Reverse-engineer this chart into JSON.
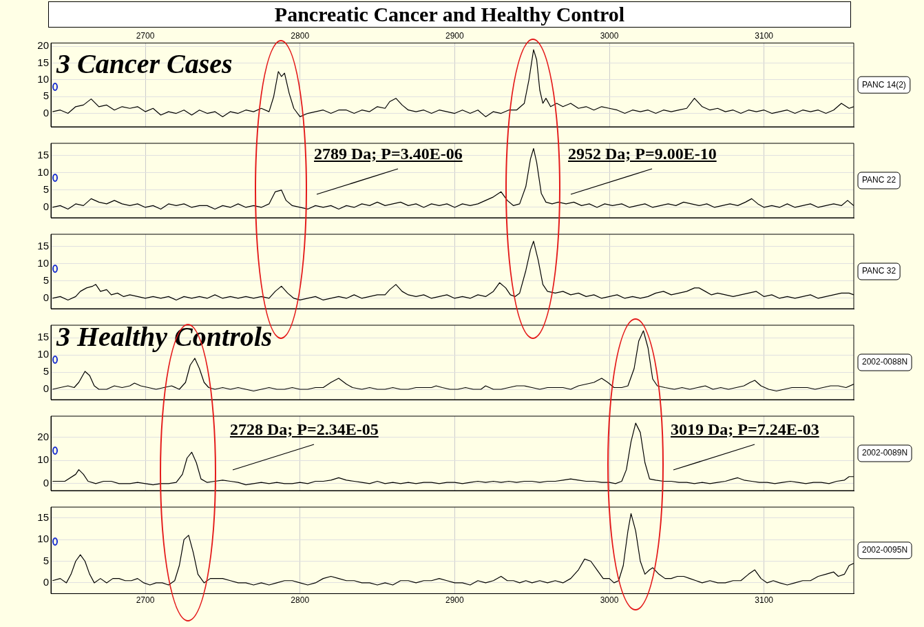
{
  "chart_data": [
    {
      "type": "line",
      "title": "Pancreatic Cancer and Healthy Control",
      "xlim": [
        2639,
        3158
      ],
      "xticks": [
        2700,
        2800,
        2900,
        3000,
        3100
      ],
      "x2lim": [
        2639,
        3158
      ],
      "x2ticks": [
        2700,
        2800,
        2900,
        3000,
        3100
      ],
      "ylim": [
        -4,
        21
      ],
      "yticks": [
        0,
        5,
        10,
        15,
        20
      ],
      "tick_labels": "y",
      "grid": true,
      "annotations": [
        "3 Cancer Cases"
      ],
      "x": [
        2640,
        2645,
        2650,
        2655,
        2660,
        2665,
        2670,
        2675,
        2680,
        2685,
        2690,
        2695,
        2700,
        2705,
        2710,
        2715,
        2720,
        2725,
        2730,
        2735,
        2740,
        2745,
        2750,
        2755,
        2760,
        2765,
        2770,
        2775,
        2780,
        2783,
        2786,
        2788,
        2790,
        2793,
        2796,
        2800,
        2805,
        2810,
        2815,
        2820,
        2825,
        2830,
        2835,
        2840,
        2845,
        2850,
        2855,
        2858,
        2862,
        2866,
        2870,
        2875,
        2880,
        2885,
        2890,
        2895,
        2900,
        2905,
        2910,
        2915,
        2920,
        2925,
        2930,
        2935,
        2940,
        2945,
        2948,
        2951,
        2953,
        2955,
        2957,
        2959,
        2962,
        2966,
        2970,
        2975,
        2980,
        2985,
        2990,
        2995,
        3000,
        3005,
        3010,
        3015,
        3020,
        3025,
        3030,
        3035,
        3040,
        3045,
        3050,
        3055,
        3060,
        3065,
        3070,
        3075,
        3080,
        3085,
        3090,
        3095,
        3100,
        3105,
        3110,
        3115,
        3120,
        3125,
        3130,
        3135,
        3140,
        3145,
        3150,
        3155,
        3158
      ],
      "series": [
        {
          "name": "PANC 14(2)",
          "color": "#000000",
          "values": [
            0.5,
            1,
            0,
            2,
            2.5,
            4.3,
            2,
            2.5,
            1,
            2,
            1.5,
            2,
            0.5,
            1.5,
            -0.5,
            0.5,
            0,
            1,
            -0.5,
            1,
            0,
            0.5,
            -1,
            0.5,
            0,
            1,
            0.5,
            1.5,
            0.5,
            5,
            12.5,
            11,
            12,
            6,
            1.5,
            -1,
            0,
            0.5,
            1,
            0,
            1,
            1,
            0,
            1,
            0.5,
            2,
            1.5,
            3.5,
            4.5,
            2.5,
            1,
            0.5,
            1,
            0,
            1,
            0.5,
            0,
            1,
            0,
            1,
            -1,
            0.5,
            0,
            1,
            1,
            3,
            10,
            19,
            16,
            7,
            3,
            4.5,
            2,
            3,
            2,
            3,
            1.5,
            2,
            1,
            2,
            1.5,
            1,
            0,
            1,
            0.5,
            1,
            0,
            1,
            0.5,
            1,
            1.5,
            4.5,
            2,
            1,
            1.5,
            0.5,
            1,
            0,
            1,
            0.5,
            1,
            0,
            0.5,
            1,
            0,
            1,
            0.5,
            1,
            0,
            1,
            3,
            1.5,
            2
          ]
        }
      ]
    },
    {
      "type": "line",
      "xlim": [
        2639,
        3158
      ],
      "xticks": [
        2700,
        2800,
        2900,
        3000,
        3100
      ],
      "ylim": [
        -3,
        18.5
      ],
      "yticks": [
        0,
        5,
        10,
        15
      ],
      "tick_labels": "y",
      "grid": true,
      "annotations": [
        "2789 Da; P=3.40E-06",
        "2952 Da; P=9.00E-10"
      ],
      "x": [
        2640,
        2645,
        2650,
        2655,
        2660,
        2665,
        2670,
        2675,
        2680,
        2685,
        2690,
        2695,
        2700,
        2705,
        2710,
        2715,
        2720,
        2725,
        2730,
        2735,
        2740,
        2745,
        2750,
        2755,
        2760,
        2765,
        2770,
        2775,
        2780,
        2784,
        2788,
        2791,
        2795,
        2800,
        2805,
        2810,
        2815,
        2820,
        2825,
        2830,
        2835,
        2840,
        2845,
        2850,
        2855,
        2860,
        2865,
        2870,
        2875,
        2880,
        2885,
        2890,
        2895,
        2900,
        2905,
        2910,
        2915,
        2920,
        2925,
        2930,
        2934,
        2938,
        2942,
        2946,
        2949,
        2951,
        2953,
        2956,
        2959,
        2963,
        2967,
        2972,
        2977,
        2982,
        2987,
        2992,
        2997,
        3002,
        3008,
        3013,
        3018,
        3023,
        3028,
        3033,
        3038,
        3043,
        3048,
        3053,
        3058,
        3063,
        3068,
        3073,
        3078,
        3083,
        3088,
        3092,
        3096,
        3100,
        3105,
        3110,
        3115,
        3120,
        3125,
        3130,
        3135,
        3140,
        3145,
        3150,
        3154,
        3158
      ],
      "series": [
        {
          "name": "PANC 22",
          "color": "#000000",
          "values": [
            0,
            0.5,
            -0.5,
            1,
            0.5,
            2.5,
            1.5,
            1,
            2,
            1,
            0.5,
            1,
            0,
            0.5,
            -0.5,
            1,
            0.5,
            1,
            0,
            0.5,
            0.5,
            -0.5,
            0.5,
            0,
            1,
            0,
            0.5,
            0,
            1,
            4.5,
            5,
            2,
            0.5,
            0,
            -0.5,
            0.5,
            0,
            0.5,
            -0.5,
            0.5,
            0,
            1,
            0.5,
            1.5,
            0.5,
            1,
            1.5,
            0.5,
            1,
            0,
            1,
            0.5,
            1,
            0,
            1,
            0.5,
            1,
            2,
            3,
            4.5,
            2,
            0.5,
            1,
            6,
            14,
            17,
            13,
            4,
            1.5,
            1,
            1.5,
            1,
            1.5,
            0.5,
            1,
            0,
            1,
            0.5,
            1,
            0,
            0.5,
            1,
            0,
            0.5,
            1,
            0.5,
            1.5,
            1,
            0.5,
            1,
            0,
            0.5,
            1,
            0.5,
            1.5,
            2.5,
            1,
            0,
            0.5,
            0,
            1,
            0,
            0.5,
            1,
            0,
            0.5,
            1,
            0.5,
            2,
            0.5
          ]
        }
      ]
    },
    {
      "type": "line",
      "xlim": [
        2639,
        3158
      ],
      "xticks": [
        2700,
        2800,
        2900,
        3000,
        3100
      ],
      "ylim": [
        -3,
        18.5
      ],
      "yticks": [
        0,
        5,
        10,
        15
      ],
      "tick_labels": "y",
      "grid": true,
      "x": [
        2640,
        2645,
        2650,
        2655,
        2658,
        2662,
        2666,
        2668,
        2671,
        2675,
        2678,
        2682,
        2686,
        2690,
        2695,
        2700,
        2705,
        2710,
        2715,
        2720,
        2725,
        2730,
        2735,
        2740,
        2745,
        2750,
        2755,
        2760,
        2765,
        2770,
        2775,
        2780,
        2784,
        2788,
        2792,
        2796,
        2800,
        2805,
        2810,
        2815,
        2820,
        2825,
        2830,
        2835,
        2840,
        2845,
        2850,
        2855,
        2858,
        2862,
        2866,
        2870,
        2875,
        2880,
        2885,
        2890,
        2895,
        2900,
        2905,
        2910,
        2915,
        2920,
        2925,
        2929,
        2933,
        2936,
        2939,
        2942,
        2946,
        2949,
        2951,
        2954,
        2957,
        2960,
        2965,
        2970,
        2975,
        2980,
        2985,
        2990,
        2995,
        3000,
        3005,
        3010,
        3015,
        3020,
        3025,
        3030,
        3035,
        3040,
        3045,
        3050,
        3055,
        3058,
        3062,
        3066,
        3070,
        3075,
        3080,
        3085,
        3090,
        3095,
        3100,
        3105,
        3110,
        3115,
        3120,
        3125,
        3130,
        3135,
        3140,
        3145,
        3150,
        3155,
        3158
      ],
      "series": [
        {
          "name": "PANC 32",
          "color": "#000000",
          "values": [
            0,
            0.5,
            -0.5,
            0.5,
            2,
            3,
            3.5,
            4,
            2,
            2.5,
            1,
            1.5,
            0.5,
            1,
            0.5,
            0,
            0.5,
            0,
            0.5,
            -0.5,
            0.5,
            0,
            0.5,
            0,
            1,
            0,
            0.5,
            0,
            0.5,
            0,
            0.5,
            0,
            2,
            3.5,
            1.5,
            0,
            -0.5,
            0,
            0.5,
            -0.5,
            0,
            0.5,
            0,
            1,
            0,
            0.5,
            1,
            1,
            2.5,
            4,
            2,
            1,
            0.5,
            1,
            0,
            0.5,
            1,
            0,
            0.5,
            0,
            1,
            0.5,
            2,
            4.5,
            3,
            1,
            0.5,
            1.5,
            8,
            14,
            16.5,
            11,
            4,
            2,
            1.5,
            2,
            1,
            1.5,
            0.5,
            1,
            0,
            0.5,
            1,
            0,
            0.5,
            0,
            0.5,
            1.5,
            2,
            1,
            1.5,
            2,
            3,
            3,
            2,
            1,
            1.5,
            1,
            0.5,
            1,
            1.5,
            2,
            0.5,
            1,
            0,
            0.5,
            0,
            0.5,
            1,
            0,
            0.5,
            1,
            1.5,
            1.5,
            1
          ]
        }
      ]
    },
    {
      "type": "line",
      "xlim": [
        2639,
        3158
      ],
      "xticks": [
        2700,
        2800,
        2900,
        3000,
        3100
      ],
      "ylim": [
        -3,
        18.6
      ],
      "yticks": [
        0,
        5,
        10,
        15
      ],
      "tick_labels": "y",
      "grid": true,
      "annotations": [
        "3 Healthy Controls"
      ],
      "x": [
        2640,
        2645,
        2650,
        2654,
        2657,
        2661,
        2664,
        2667,
        2670,
        2675,
        2680,
        2685,
        2690,
        2693,
        2697,
        2702,
        2707,
        2712,
        2717,
        2722,
        2726,
        2729,
        2732,
        2735,
        2738,
        2741,
        2745,
        2750,
        2755,
        2760,
        2765,
        2770,
        2775,
        2780,
        2785,
        2790,
        2795,
        2800,
        2805,
        2810,
        2815,
        2820,
        2825,
        2830,
        2834,
        2840,
        2845,
        2850,
        2855,
        2860,
        2865,
        2870,
        2875,
        2880,
        2885,
        2888,
        2892,
        2897,
        2902,
        2907,
        2912,
        2917,
        2920,
        2925,
        2930,
        2935,
        2940,
        2945,
        2950,
        2955,
        2960,
        2965,
        2970,
        2975,
        2980,
        2985,
        2990,
        2995,
        2999,
        3003,
        3008,
        3012,
        3016,
        3019,
        3022,
        3025,
        3028,
        3031,
        3036,
        3042,
        3047,
        3052,
        3057,
        3062,
        3067,
        3072,
        3077,
        3082,
        3087,
        3091,
        3094,
        3098,
        3103,
        3108,
        3113,
        3118,
        3123,
        3128,
        3133,
        3138,
        3143,
        3148,
        3153,
        3158
      ],
      "series": [
        {
          "name": "2002-0088N",
          "color": "#000000",
          "values": [
            0,
            0.5,
            1,
            0.5,
            2,
            5.2,
            4,
            1,
            0,
            0,
            1,
            0.5,
            1,
            1.8,
            1,
            0.5,
            0,
            0.5,
            1,
            0,
            2,
            7,
            9,
            6,
            2,
            0.5,
            0,
            0.5,
            0,
            0.5,
            0,
            -0.5,
            0,
            0.5,
            0,
            0,
            0.5,
            0,
            0,
            0.5,
            0.5,
            2,
            3.2,
            1.5,
            0.5,
            0,
            0.5,
            0,
            0,
            0.5,
            0,
            0,
            0.5,
            0.5,
            0.5,
            1,
            0.5,
            0,
            0,
            0.5,
            0,
            0,
            1,
            0,
            0,
            0.5,
            1,
            1,
            0.5,
            0,
            0.5,
            0.5,
            0.5,
            0,
            1,
            1.5,
            2,
            3.2,
            2,
            0.5,
            0.5,
            1,
            6,
            14,
            17,
            12,
            3,
            1,
            0.5,
            0,
            0.5,
            0,
            0.5,
            1,
            0,
            0.5,
            0,
            0.5,
            1,
            2,
            2.6,
            1,
            0,
            -0.5,
            0,
            0.5,
            0.5,
            0.5,
            0,
            0.5,
            1,
            1,
            0.5,
            1.5
          ]
        }
      ]
    },
    {
      "type": "line",
      "xlim": [
        2639,
        3158
      ],
      "xticks": [
        2700,
        2800,
        2900,
        3000,
        3100
      ],
      "ylim": [
        -3,
        29
      ],
      "yticks": [
        0,
        10,
        20
      ],
      "tick_labels": "y",
      "grid": true,
      "annotations": [
        "2728 Da; P=2.34E-05",
        "3019 Da; P=7.24E-03"
      ],
      "x": [
        2640,
        2648,
        2655,
        2657,
        2660,
        2663,
        2668,
        2673,
        2678,
        2683,
        2690,
        2695,
        2700,
        2705,
        2710,
        2715,
        2720,
        2724,
        2727,
        2730,
        2733,
        2736,
        2740,
        2745,
        2750,
        2755,
        2760,
        2765,
        2770,
        2775,
        2780,
        2785,
        2790,
        2795,
        2800,
        2805,
        2810,
        2815,
        2820,
        2825,
        2830,
        2835,
        2840,
        2845,
        2850,
        2855,
        2860,
        2865,
        2870,
        2875,
        2880,
        2885,
        2890,
        2895,
        2900,
        2905,
        2910,
        2915,
        2920,
        2925,
        2930,
        2935,
        2940,
        2945,
        2950,
        2955,
        2960,
        2965,
        2970,
        2975,
        2980,
        2985,
        2990,
        2995,
        3000,
        3004,
        3008,
        3011,
        3014,
        3017,
        3020,
        3023,
        3026,
        3030,
        3035,
        3040,
        3045,
        3050,
        3055,
        3060,
        3065,
        3070,
        3075,
        3080,
        3083,
        3087,
        3092,
        3097,
        3102,
        3107,
        3112,
        3117,
        3122,
        3127,
        3132,
        3137,
        3142,
        3147,
        3152,
        3155,
        3158
      ],
      "series": [
        {
          "name": "2002-0089N",
          "color": "#000000",
          "values": [
            1,
            1,
            4,
            6,
            4,
            1,
            0,
            1,
            1,
            0,
            0,
            0.5,
            0,
            -0.5,
            0,
            0,
            0.5,
            4,
            11,
            13.5,
            9,
            2,
            0.5,
            1,
            1.5,
            1,
            0.5,
            -0.5,
            0,
            0.5,
            0,
            0.5,
            0,
            0,
            0.5,
            0,
            1,
            1,
            1.5,
            2.5,
            1.5,
            1,
            0.5,
            0,
            1,
            0,
            0.5,
            0,
            0.5,
            0,
            0.5,
            0.5,
            0,
            0.5,
            0.5,
            0,
            0.5,
            1,
            0.5,
            1,
            0.5,
            1,
            0.5,
            1,
            1,
            0.5,
            1,
            1,
            1.5,
            2,
            1.5,
            1,
            1,
            0.5,
            0.5,
            0,
            1,
            6,
            18,
            26,
            22,
            9,
            2,
            1.5,
            1,
            1,
            0.5,
            0.5,
            0,
            0.5,
            0,
            0.5,
            1,
            2,
            2.5,
            1.5,
            1,
            0.5,
            0.5,
            0,
            0.5,
            1,
            0.5,
            0,
            0.5,
            0.5,
            0,
            1,
            1.5,
            3,
            3
          ]
        }
      ]
    },
    {
      "type": "line",
      "xlim": [
        2639,
        3158
      ],
      "xticks": [
        2700,
        2800,
        2900,
        3000,
        3100
      ],
      "ylim": [
        -2.5,
        17.5
      ],
      "yticks": [
        0,
        5,
        10,
        15
      ],
      "grid": true,
      "x": [
        2640,
        2645,
        2649,
        2652,
        2655,
        2658,
        2661,
        2664,
        2667,
        2671,
        2675,
        2679,
        2683,
        2687,
        2691,
        2695,
        2699,
        2703,
        2707,
        2711,
        2715,
        2719,
        2722,
        2725,
        2728,
        2731,
        2734,
        2738,
        2742,
        2746,
        2750,
        2755,
        2760,
        2765,
        2770,
        2775,
        2780,
        2785,
        2790,
        2795,
        2800,
        2805,
        2810,
        2815,
        2820,
        2825,
        2830,
        2835,
        2840,
        2845,
        2850,
        2855,
        2860,
        2865,
        2870,
        2875,
        2880,
        2885,
        2890,
        2895,
        2900,
        2905,
        2910,
        2915,
        2920,
        2925,
        2930,
        2934,
        2938,
        2942,
        2946,
        2950,
        2955,
        2960,
        2965,
        2970,
        2975,
        2980,
        2984,
        2988,
        2992,
        2996,
        3000,
        3003,
        3006,
        3009,
        3012,
        3014,
        3017,
        3020,
        3023,
        3026,
        3028,
        3032,
        3036,
        3040,
        3044,
        3048,
        3052,
        3056,
        3060,
        3065,
        3070,
        3075,
        3080,
        3085,
        3090,
        3094,
        3098,
        3102,
        3106,
        3110,
        3115,
        3120,
        3125,
        3130,
        3135,
        3140,
        3145,
        3148,
        3152,
        3155,
        3158
      ],
      "series": [
        {
          "name": "2002-0095N",
          "color": "#000000",
          "values": [
            0.5,
            1,
            0,
            2,
            5,
            6.5,
            5,
            2,
            0,
            1,
            0,
            1,
            1,
            0.5,
            0.5,
            1,
            0,
            -0.5,
            0,
            0,
            -0.5,
            0.5,
            4,
            10,
            11,
            7,
            2,
            0,
            1,
            1,
            1,
            0.5,
            0,
            0,
            -0.5,
            0,
            -0.5,
            0,
            0.5,
            0.5,
            0,
            -0.5,
            0,
            1,
            1.5,
            1,
            0.5,
            0.5,
            0,
            0,
            -0.5,
            0,
            -0.5,
            0.5,
            0.5,
            0,
            0.5,
            0.5,
            1,
            0.5,
            0,
            0,
            -0.5,
            0.5,
            0,
            0.5,
            1.5,
            0.5,
            0.5,
            0,
            0.5,
            0,
            0.5,
            0,
            0.5,
            0,
            1,
            3,
            5.5,
            5,
            3,
            1,
            1,
            0,
            0.5,
            4,
            12,
            16,
            12,
            5,
            2,
            3,
            3.5,
            2,
            1,
            1,
            1.5,
            1.5,
            1,
            0.5,
            0,
            0.5,
            0,
            0,
            0.5,
            0.5,
            2,
            3,
            1,
            0,
            0.5,
            0,
            -0.5,
            0,
            0.5,
            0.5,
            1.5,
            2,
            2.5,
            1.5,
            2,
            4,
            4.5
          ]
        }
      ]
    }
  ]
}
